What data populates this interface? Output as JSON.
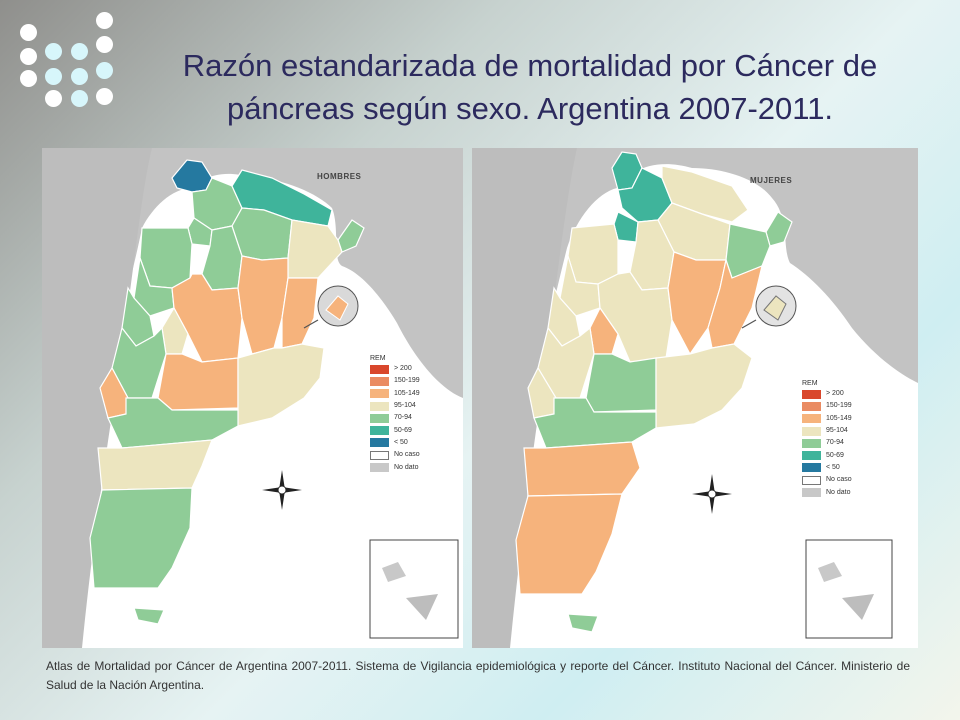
{
  "title": {
    "line1": "Razón estandarizada de mortalidad por Cáncer de",
    "line2": "páncreas según sexo. Argentina 2007-2011."
  },
  "maps": {
    "hombres": {
      "label": "HOMBRES"
    },
    "mujeres": {
      "label": "MUJERES"
    }
  },
  "legend": {
    "title": "REM",
    "items": [
      {
        "label": "> 200",
        "color": "#d9472c"
      },
      {
        "label": "150-199",
        "color": "#ea8b62"
      },
      {
        "label": "105-149",
        "color": "#f6b37c"
      },
      {
        "label": "95-104",
        "color": "#ece5bf"
      },
      {
        "label": "70-94",
        "color": "#8fcc97"
      },
      {
        "label": "50-69",
        "color": "#3fb49b"
      },
      {
        "label": "< 50",
        "color": "#2579a0"
      },
      {
        "label": "No caso",
        "color": "#ffffff"
      },
      {
        "label": "No dato",
        "color": "#c8c8c8"
      }
    ]
  },
  "caption": "Atlas de Mortalidad por Cáncer de Argentina 2007-2011. Sistema de Vigilancia epidemiológica y reporte del Cáncer. Instituto Nacional del Cáncer. Ministerio de Salud de la Nación Argentina."
}
